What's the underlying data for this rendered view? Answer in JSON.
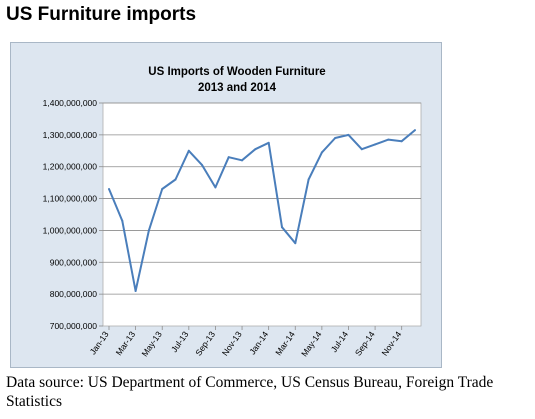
{
  "page": {
    "title": "US Furniture imports",
    "source_note": "Data source: US Department of Commerce, US Census Bureau, Foreign Trade Statistics"
  },
  "chart_data": {
    "type": "line",
    "title": "US Imports of Wooden Furniture",
    "subtitle": "2013 and 2014",
    "xlabel": "",
    "ylabel": "",
    "ylim": [
      700000000,
      1400000000
    ],
    "ytick_step": 100000000,
    "y_tick_labels": [
      "700,000,000",
      "800,000,000",
      "900,000,000",
      "1,000,000,000",
      "1,100,000,000",
      "1,200,000,000",
      "1,300,000,000",
      "1,400,000,000"
    ],
    "grid": true,
    "legend": "none",
    "line_color": "#4a7ebb",
    "x": [
      "Jan-13",
      "Feb-13",
      "Mar-13",
      "Apr-13",
      "May-13",
      "Jun-13",
      "Jul-13",
      "Aug-13",
      "Sep-13",
      "Oct-13",
      "Nov-13",
      "Dec-13",
      "Jan-14",
      "Feb-14",
      "Mar-14",
      "Apr-14",
      "May-14",
      "Jun-14",
      "Jul-14",
      "Aug-14",
      "Sep-14",
      "Oct-14",
      "Nov-14",
      "Dec-14"
    ],
    "x_tick_labels": [
      "Jan-13",
      "Mar-13",
      "May-13",
      "Jul-13",
      "Sep-13",
      "Nov-13",
      "Jan-14",
      "Mar-14",
      "May-14",
      "Jul-14",
      "Sep-14",
      "Nov-14"
    ],
    "series": [
      {
        "values": [
          1130000000,
          1030000000,
          810000000,
          1000000000,
          1130000000,
          1160000000,
          1250000000,
          1205000000,
          1135000000,
          1230000000,
          1220000000,
          1255000000,
          1275000000,
          1010000000,
          960000000,
          1160000000,
          1245000000,
          1290000000,
          1300000000,
          1255000000,
          1270000000,
          1285000000,
          1280000000,
          1315000000
        ]
      }
    ]
  }
}
